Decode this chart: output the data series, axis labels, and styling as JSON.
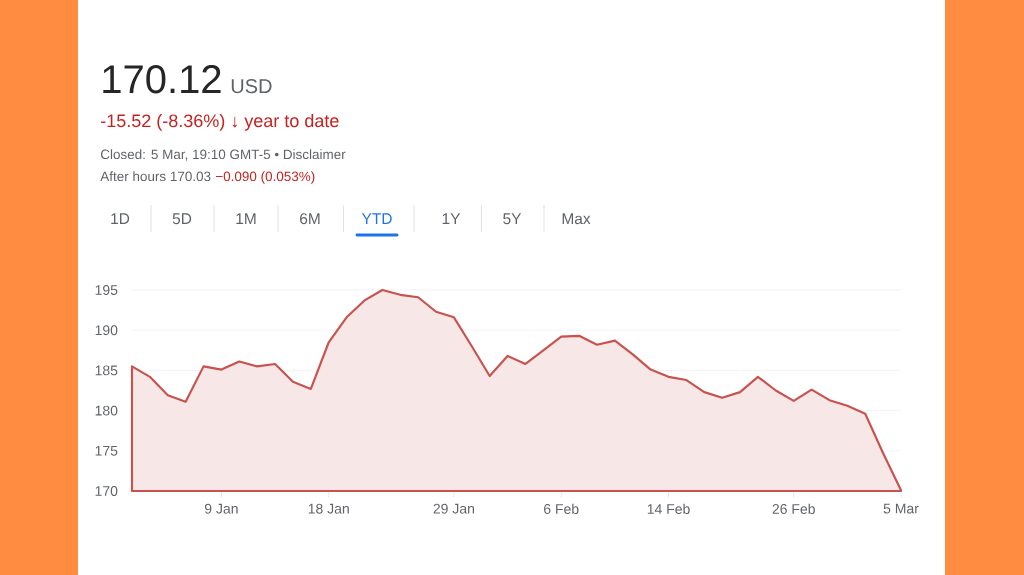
{
  "chart_data": {
    "type": "area",
    "title": "170.12",
    "subtitle": "-15.52 (-8.36%) ↓ year to date",
    "annotations": [
      "USD",
      "Closed: 5 Mar, 19:10 GMT-5 • Disclaimer",
      "After hours 170.03",
      "−0.090 (0.053%)",
      "1D",
      "5D",
      "1M",
      "6M",
      "YTD",
      "1Y",
      "5Y",
      "Max"
    ],
    "categories": [
      null,
      null,
      null,
      null,
      null,
      "9 Jan",
      null,
      null,
      null,
      null,
      null,
      "18 Jan",
      null,
      null,
      null,
      null,
      null,
      null,
      "29 Jan",
      null,
      null,
      null,
      null,
      null,
      "6 Feb",
      null,
      null,
      null,
      null,
      null,
      "14 Feb",
      null,
      null,
      null,
      null,
      null,
      null,
      "26 Feb",
      null,
      null,
      null,
      null,
      null,
      "5 Mar"
    ],
    "values": [
      185.5,
      184.2,
      181.9,
      181.1,
      185.5,
      185.1,
      186.1,
      185.5,
      185.8,
      183.6,
      182.7,
      188.5,
      191.6,
      193.7,
      195.0,
      194.4,
      194.1,
      192.3,
      191.6,
      188.0,
      184.3,
      186.8,
      185.8,
      187.5,
      189.2,
      189.3,
      188.2,
      188.7,
      187.0,
      185.1,
      184.2,
      183.8,
      182.3,
      181.6,
      182.3,
      184.2,
      182.5,
      181.2,
      182.6,
      181.3,
      180.6,
      179.6,
      174.7,
      170.1
    ],
    "color": "#c8524e",
    "ylim": [
      170,
      195
    ],
    "yticks": [
      170,
      175,
      180,
      185,
      190,
      195
    ],
    "grid": "y"
  }
}
